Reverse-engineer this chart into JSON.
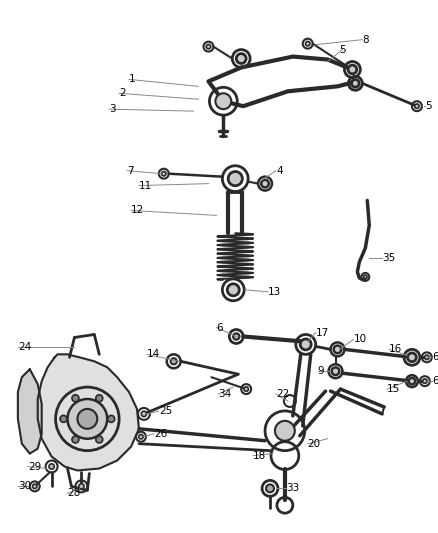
{
  "bg_color": "#ffffff",
  "line_color": "#2a2a2a",
  "gray_color": "#888888",
  "font_size": 7.5,
  "figsize": [
    4.38,
    5.33
  ],
  "dpi": 100
}
